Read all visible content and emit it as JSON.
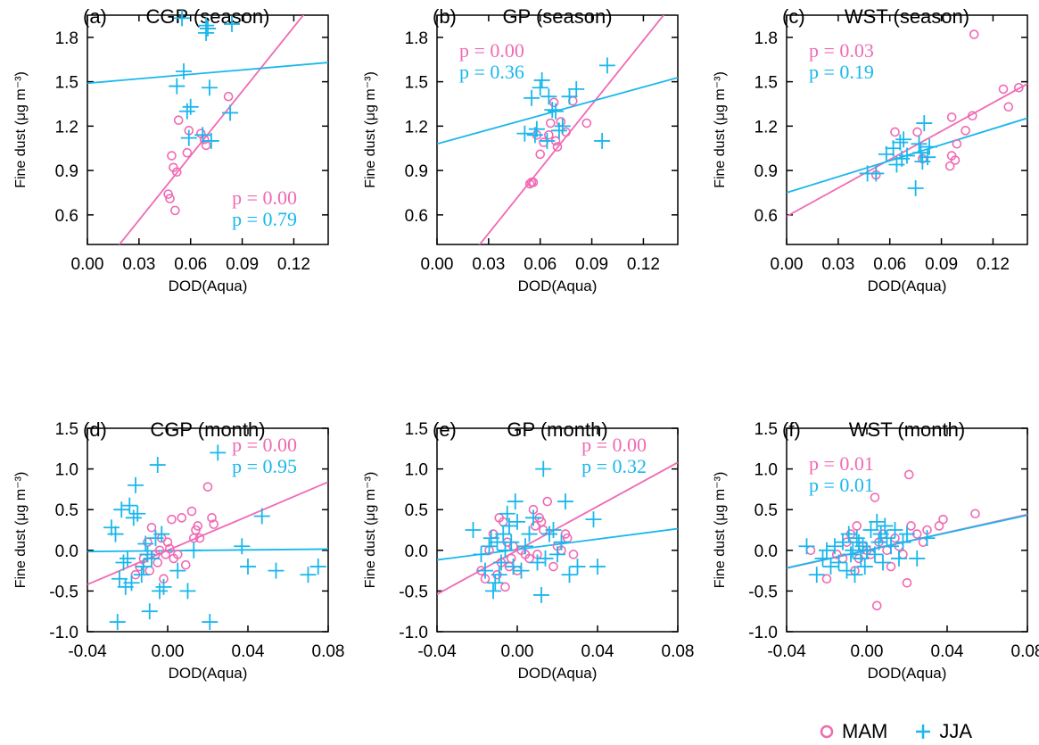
{
  "colors": {
    "MAM": "#f06ab3",
    "JJA": "#1ab7ec",
    "axis": "#000000"
  },
  "legend": {
    "items": [
      {
        "name": "MAM",
        "marker": "circle"
      },
      {
        "name": "JJA",
        "marker": "plus"
      }
    ]
  },
  "chart_data": [
    {
      "type": "scatter",
      "panel_label": "(a)",
      "title": "CGP (season)",
      "xlabel": "DOD(Aqua)",
      "ylabel": "Fine dust (μg m⁻³)",
      "xlim": [
        0.0,
        0.14
      ],
      "ylim": [
        0.4,
        1.95
      ],
      "xticks": [
        "0.00",
        "0.03",
        "0.06",
        "0.09",
        "0.12"
      ],
      "xtick_values": [
        0.0,
        0.03,
        0.06,
        0.09,
        0.12
      ],
      "yticks": [
        "0.6",
        "0.9",
        "1.2",
        "1.5",
        "1.8"
      ],
      "ytick_values": [
        0.6,
        0.9,
        1.2,
        1.5,
        1.8
      ],
      "annotations": [
        {
          "text": "p = 0.00",
          "series": "MAM",
          "pos": "lower-right"
        },
        {
          "text": "p = 0.79",
          "series": "JJA",
          "pos": "lower-right"
        }
      ],
      "series": [
        {
          "name": "MAM",
          "marker": "circle",
          "x": [
            0.047,
            0.048,
            0.049,
            0.05,
            0.051,
            0.052,
            0.053,
            0.058,
            0.059,
            0.066,
            0.068,
            0.069,
            0.082
          ],
          "y": [
            0.74,
            0.71,
            1.0,
            0.92,
            0.63,
            0.89,
            1.24,
            1.02,
            1.17,
            1.15,
            1.11,
            1.07,
            1.4
          ],
          "fit": {
            "slope": 14.5,
            "intercept": 0.13
          }
        },
        {
          "name": "JJA",
          "marker": "plus",
          "x": [
            0.052,
            0.055,
            0.056,
            0.058,
            0.059,
            0.06,
            0.067,
            0.069,
            0.069,
            0.07,
            0.071,
            0.072,
            0.083,
            0.084
          ],
          "y": [
            1.47,
            1.93,
            1.57,
            1.3,
            1.12,
            1.33,
            1.14,
            1.88,
            1.83,
            1.86,
            1.46,
            1.1,
            1.29,
            1.89
          ],
          "fit": {
            "slope": 1.0,
            "intercept": 1.49
          }
        }
      ]
    },
    {
      "type": "scatter",
      "panel_label": "(b)",
      "title": "GP (season)",
      "xlabel": "DOD(Aqua)",
      "ylabel": "Fine dust (μg m⁻³)",
      "xlim": [
        0.0,
        0.14
      ],
      "ylim": [
        0.4,
        1.95
      ],
      "xticks": [
        "0.00",
        "0.03",
        "0.06",
        "0.09",
        "0.12"
      ],
      "xtick_values": [
        0.0,
        0.03,
        0.06,
        0.09,
        0.12
      ],
      "yticks": [
        "0.6",
        "0.9",
        "1.2",
        "1.5",
        "1.8"
      ],
      "ytick_values": [
        0.6,
        0.9,
        1.2,
        1.5,
        1.8
      ],
      "annotations": [
        {
          "text": "p = 0.00",
          "series": "MAM",
          "pos": "upper-left"
        },
        {
          "text": "p = 0.36",
          "series": "JJA",
          "pos": "upper-left"
        }
      ],
      "series": [
        {
          "name": "MAM",
          "marker": "circle",
          "x": [
            0.054,
            0.055,
            0.056,
            0.058,
            0.06,
            0.062,
            0.065,
            0.066,
            0.068,
            0.069,
            0.07,
            0.072,
            0.075,
            0.079,
            0.087
          ],
          "y": [
            0.81,
            0.82,
            0.82,
            1.14,
            1.01,
            1.09,
            1.14,
            1.22,
            1.36,
            1.1,
            1.06,
            1.23,
            1.16,
            1.37,
            1.22
          ],
          "fit": {
            "slope": 14.5,
            "intercept": 0.04
          }
        },
        {
          "name": "JJA",
          "marker": "plus",
          "x": [
            0.051,
            0.055,
            0.057,
            0.058,
            0.06,
            0.061,
            0.064,
            0.065,
            0.067,
            0.069,
            0.071,
            0.073,
            0.077,
            0.081,
            0.096,
            0.099
          ],
          "y": [
            1.15,
            1.39,
            1.14,
            1.18,
            1.46,
            1.51,
            1.1,
            1.4,
            1.31,
            1.3,
            1.17,
            1.2,
            1.4,
            1.45,
            1.1,
            1.61
          ],
          "fit": {
            "slope": 3.2,
            "intercept": 1.08
          }
        }
      ]
    },
    {
      "type": "scatter",
      "panel_label": "(c)",
      "title": "WST (season)",
      "xlabel": "DOD(Aqua)",
      "ylabel": "Fine dust (μg m⁻³)",
      "xlim": [
        0.0,
        0.14
      ],
      "ylim": [
        0.4,
        1.95
      ],
      "xticks": [
        "0.00",
        "0.03",
        "0.06",
        "0.09",
        "0.12"
      ],
      "xtick_values": [
        0.0,
        0.03,
        0.06,
        0.09,
        0.12
      ],
      "yticks": [
        "0.6",
        "0.9",
        "1.2",
        "1.5",
        "1.8"
      ],
      "ytick_values": [
        0.6,
        0.9,
        1.2,
        1.5,
        1.8
      ],
      "annotations": [
        {
          "text": "p = 0.03",
          "series": "MAM",
          "pos": "upper-left"
        },
        {
          "text": "p = 0.19",
          "series": "JJA",
          "pos": "upper-left"
        }
      ],
      "series": [
        {
          "name": "MAM",
          "marker": "circle",
          "x": [
            0.052,
            0.063,
            0.076,
            0.079,
            0.095,
            0.096,
            0.096,
            0.098,
            0.099,
            0.104,
            0.108,
            0.109,
            0.126,
            0.129,
            0.135
          ],
          "y": [
            0.87,
            1.16,
            1.16,
            0.98,
            0.93,
            1.26,
            1.0,
            0.97,
            1.08,
            1.17,
            1.27,
            1.82,
            1.45,
            1.33,
            1.46
          ],
          "fit": {
            "slope": 6.4,
            "intercept": 0.59
          }
        },
        {
          "name": "JJA",
          "marker": "plus",
          "x": [
            0.047,
            0.052,
            0.058,
            0.062,
            0.064,
            0.066,
            0.067,
            0.068,
            0.07,
            0.075,
            0.077,
            0.078,
            0.079,
            0.08,
            0.082,
            0.083
          ],
          "y": [
            0.88,
            0.88,
            1.01,
            1.05,
            0.94,
            1.09,
            0.98,
            1.11,
            1.0,
            0.78,
            1.08,
            1.02,
            0.96,
            1.22,
            0.99,
            1.06
          ],
          "fit": {
            "slope": 3.6,
            "intercept": 0.75
          }
        }
      ]
    },
    {
      "type": "scatter",
      "panel_label": "(d)",
      "title": "CGP (month)",
      "xlabel": "DOD(Aqua)",
      "ylabel": "Fine dust (μg m⁻³)",
      "xlim": [
        -0.04,
        0.08
      ],
      "ylim": [
        -1.0,
        1.5
      ],
      "xticks": [
        "-0.04",
        "0.00",
        "0.04",
        "0.08"
      ],
      "xtick_values": [
        -0.04,
        0.0,
        0.04,
        0.08
      ],
      "yticks": [
        "-1.0",
        "-0.5",
        "0.0",
        "0.5",
        "1.0",
        "1.5"
      ],
      "ytick_values": [
        -1.0,
        -0.5,
        0.0,
        0.5,
        1.0,
        1.5
      ],
      "annotations": [
        {
          "text": "p = 0.00",
          "series": "MAM",
          "pos": "upper-right"
        },
        {
          "text": "p = 0.95",
          "series": "JJA",
          "pos": "upper-right"
        }
      ],
      "series": [
        {
          "name": "MAM",
          "marker": "circle",
          "x": [
            -0.016,
            -0.014,
            -0.012,
            -0.01,
            -0.009,
            -0.008,
            -0.006,
            -0.005,
            -0.004,
            -0.003,
            -0.002,
            -0.001,
            0.0,
            0.001,
            0.002,
            0.003,
            0.005,
            0.007,
            0.009,
            0.012,
            0.013,
            0.014,
            0.015,
            0.016,
            0.02,
            0.022,
            0.023
          ],
          "y": [
            -0.3,
            -0.2,
            -0.1,
            0.1,
            -0.25,
            0.28,
            -0.05,
            -0.15,
            0.0,
            0.15,
            -0.35,
            -0.05,
            0.1,
            0.02,
            0.38,
            -0.1,
            -0.05,
            0.4,
            -0.18,
            0.48,
            0.15,
            0.25,
            0.3,
            0.15,
            0.78,
            0.4,
            0.32
          ],
          "fit": {
            "slope": 10.5,
            "intercept": 0.0
          }
        },
        {
          "name": "JJA",
          "marker": "plus",
          "x": [
            -0.028,
            -0.026,
            -0.025,
            -0.024,
            -0.023,
            -0.022,
            -0.021,
            -0.02,
            -0.019,
            -0.018,
            -0.017,
            -0.016,
            -0.015,
            -0.013,
            -0.012,
            -0.011,
            -0.01,
            -0.009,
            -0.008,
            -0.006,
            -0.005,
            -0.004,
            -0.003,
            -0.002,
            0.005,
            0.01,
            0.013,
            0.021,
            0.025,
            0.037,
            0.04,
            0.047,
            0.054,
            0.07,
            0.075
          ],
          "y": [
            0.28,
            0.2,
            -0.88,
            -0.35,
            0.5,
            -0.15,
            -0.45,
            -0.1,
            0.55,
            -0.4,
            0.4,
            0.8,
            0.45,
            -0.3,
            -0.2,
            0.08,
            -0.05,
            -0.75,
            -0.1,
            0.15,
            1.05,
            -0.5,
            0.2,
            -0.45,
            -0.25,
            -0.5,
            0.0,
            -0.88,
            1.2,
            0.05,
            -0.2,
            0.42,
            -0.25,
            -0.3,
            -0.2
          ],
          "fit": {
            "slope": 0.25,
            "intercept": -0.005
          }
        }
      ]
    },
    {
      "type": "scatter",
      "panel_label": "(e)",
      "title": "GP (month)",
      "xlabel": "DOD(Aqua)",
      "ylabel": "Fine dust (μg m⁻³)",
      "xlim": [
        -0.04,
        0.08
      ],
      "ylim": [
        -1.0,
        1.5
      ],
      "xticks": [
        "-0.04",
        "0.00",
        "0.04",
        "0.08"
      ],
      "xtick_values": [
        -0.04,
        0.0,
        0.04,
        0.08
      ],
      "yticks": [
        "-1.0",
        "-0.5",
        "0.0",
        "0.5",
        "1.0",
        "1.5"
      ],
      "ytick_values": [
        -1.0,
        -0.5,
        0.0,
        0.5,
        1.0,
        1.5
      ],
      "annotations": [
        {
          "text": "p = 0.00",
          "series": "MAM",
          "pos": "upper-right"
        },
        {
          "text": "p = 0.32",
          "series": "JJA",
          "pos": "upper-right"
        }
      ],
      "series": [
        {
          "name": "MAM",
          "marker": "circle",
          "x": [
            -0.018,
            -0.016,
            -0.014,
            -0.012,
            -0.01,
            -0.009,
            -0.008,
            -0.007,
            -0.006,
            -0.005,
            -0.004,
            -0.003,
            -0.002,
            0.0,
            0.002,
            0.004,
            0.006,
            0.008,
            0.009,
            0.01,
            0.011,
            0.012,
            0.013,
            0.015,
            0.018,
            0.02,
            0.022,
            0.024,
            0.025,
            0.028
          ],
          "y": [
            -0.25,
            -0.35,
            0.0,
            0.2,
            -0.3,
            0.4,
            -0.15,
            0.35,
            -0.45,
            0.1,
            -0.2,
            -0.1,
            0.05,
            -0.25,
            0.0,
            -0.05,
            -0.1,
            0.5,
            0.3,
            -0.05,
            0.4,
            0.35,
            0.25,
            0.6,
            -0.2,
            0.05,
            0.0,
            0.2,
            0.15,
            -0.05
          ],
          "fit": {
            "slope": 13.5,
            "intercept": 0.0
          }
        },
        {
          "name": "JJA",
          "marker": "plus",
          "x": [
            -0.022,
            -0.018,
            -0.016,
            -0.014,
            -0.013,
            -0.012,
            -0.011,
            -0.01,
            -0.009,
            -0.008,
            -0.007,
            -0.006,
            -0.005,
            -0.004,
            -0.003,
            -0.002,
            -0.001,
            0.0,
            0.002,
            0.004,
            0.006,
            0.008,
            0.01,
            0.012,
            0.013,
            0.014,
            0.016,
            0.018,
            0.02,
            0.022,
            0.024,
            0.026,
            0.03,
            0.038,
            0.04
          ],
          "y": [
            0.25,
            -0.05,
            -0.25,
            0.05,
            0.15,
            -0.5,
            -0.4,
            0.1,
            -0.3,
            -0.15,
            0.2,
            0.0,
            0.45,
            0.3,
            0.1,
            -0.2,
            0.6,
            0.35,
            -0.25,
            0.05,
            0.2,
            0.4,
            -0.15,
            -0.55,
            1.0,
            -0.1,
            0.2,
            0.25,
            -0.05,
            0.1,
            0.6,
            -0.3,
            -0.2,
            0.38,
            -0.2
          ],
          "fit": {
            "slope": 3.2,
            "intercept": 0.01
          }
        }
      ]
    },
    {
      "type": "scatter",
      "panel_label": "(f)",
      "title": "WST (month)",
      "xlabel": "DOD(Aqua)",
      "ylabel": "Fine dust (μg m⁻³)",
      "xlim": [
        -0.04,
        0.08
      ],
      "ylim": [
        -1.0,
        1.5
      ],
      "xticks": [
        "-0.04",
        "0.00",
        "0.04",
        "0.08"
      ],
      "xtick_values": [
        -0.04,
        0.0,
        0.04,
        0.08
      ],
      "yticks": [
        "-1.0",
        "-0.5",
        "0.0",
        "0.5",
        "1.0",
        "1.5"
      ],
      "ytick_values": [
        -1.0,
        -0.5,
        0.0,
        0.5,
        1.0,
        1.5
      ],
      "annotations": [
        {
          "text": "p = 0.01",
          "series": "MAM",
          "pos": "upper-left"
        },
        {
          "text": "p = 0.01",
          "series": "JJA",
          "pos": "upper-left"
        }
      ],
      "series": [
        {
          "name": "MAM",
          "marker": "circle",
          "x": [
            -0.028,
            -0.02,
            -0.015,
            -0.012,
            -0.01,
            -0.008,
            -0.006,
            -0.005,
            -0.004,
            -0.002,
            0.0,
            0.002,
            0.004,
            0.005,
            0.006,
            0.008,
            0.01,
            0.012,
            0.014,
            0.016,
            0.018,
            0.02,
            0.021,
            0.022,
            0.025,
            0.028,
            0.03,
            0.036,
            0.038,
            0.054
          ],
          "y": [
            0.0,
            -0.35,
            -0.05,
            -0.1,
            0.1,
            0.2,
            -0.25,
            0.3,
            -0.1,
            0.05,
            0.0,
            -0.05,
            0.65,
            -0.68,
            0.1,
            0.2,
            0.0,
            -0.2,
            0.15,
            0.05,
            -0.05,
            -0.4,
            0.93,
            0.3,
            0.2,
            0.1,
            0.25,
            0.3,
            0.38,
            0.45
          ],
          "fit": {
            "slope": 5.5,
            "intercept": 0.0
          }
        },
        {
          "name": "JJA",
          "marker": "plus",
          "x": [
            -0.03,
            -0.025,
            -0.022,
            -0.02,
            -0.018,
            -0.016,
            -0.014,
            -0.012,
            -0.01,
            -0.009,
            -0.008,
            -0.007,
            -0.006,
            -0.005,
            -0.004,
            -0.003,
            -0.002,
            -0.001,
            0.0,
            0.002,
            0.004,
            0.005,
            0.006,
            0.007,
            0.008,
            0.009,
            0.01,
            0.012,
            0.014,
            0.016,
            0.018,
            0.02,
            0.025,
            0.03
          ],
          "y": [
            0.05,
            -0.3,
            -0.1,
            0.0,
            -0.2,
            0.05,
            -0.15,
            0.1,
            -0.25,
            0.2,
            -0.05,
            0.0,
            -0.3,
            0.15,
            0.1,
            -0.1,
            0.05,
            -0.2,
            0.0,
            0.25,
            -0.05,
            0.35,
            0.1,
            0.2,
            -0.15,
            0.3,
            0.15,
            0.05,
            0.25,
            -0.1,
            0.1,
            0.2,
            -0.1,
            0.15
          ],
          "fit": {
            "slope": 5.4,
            "intercept": 0.0
          }
        }
      ]
    }
  ]
}
